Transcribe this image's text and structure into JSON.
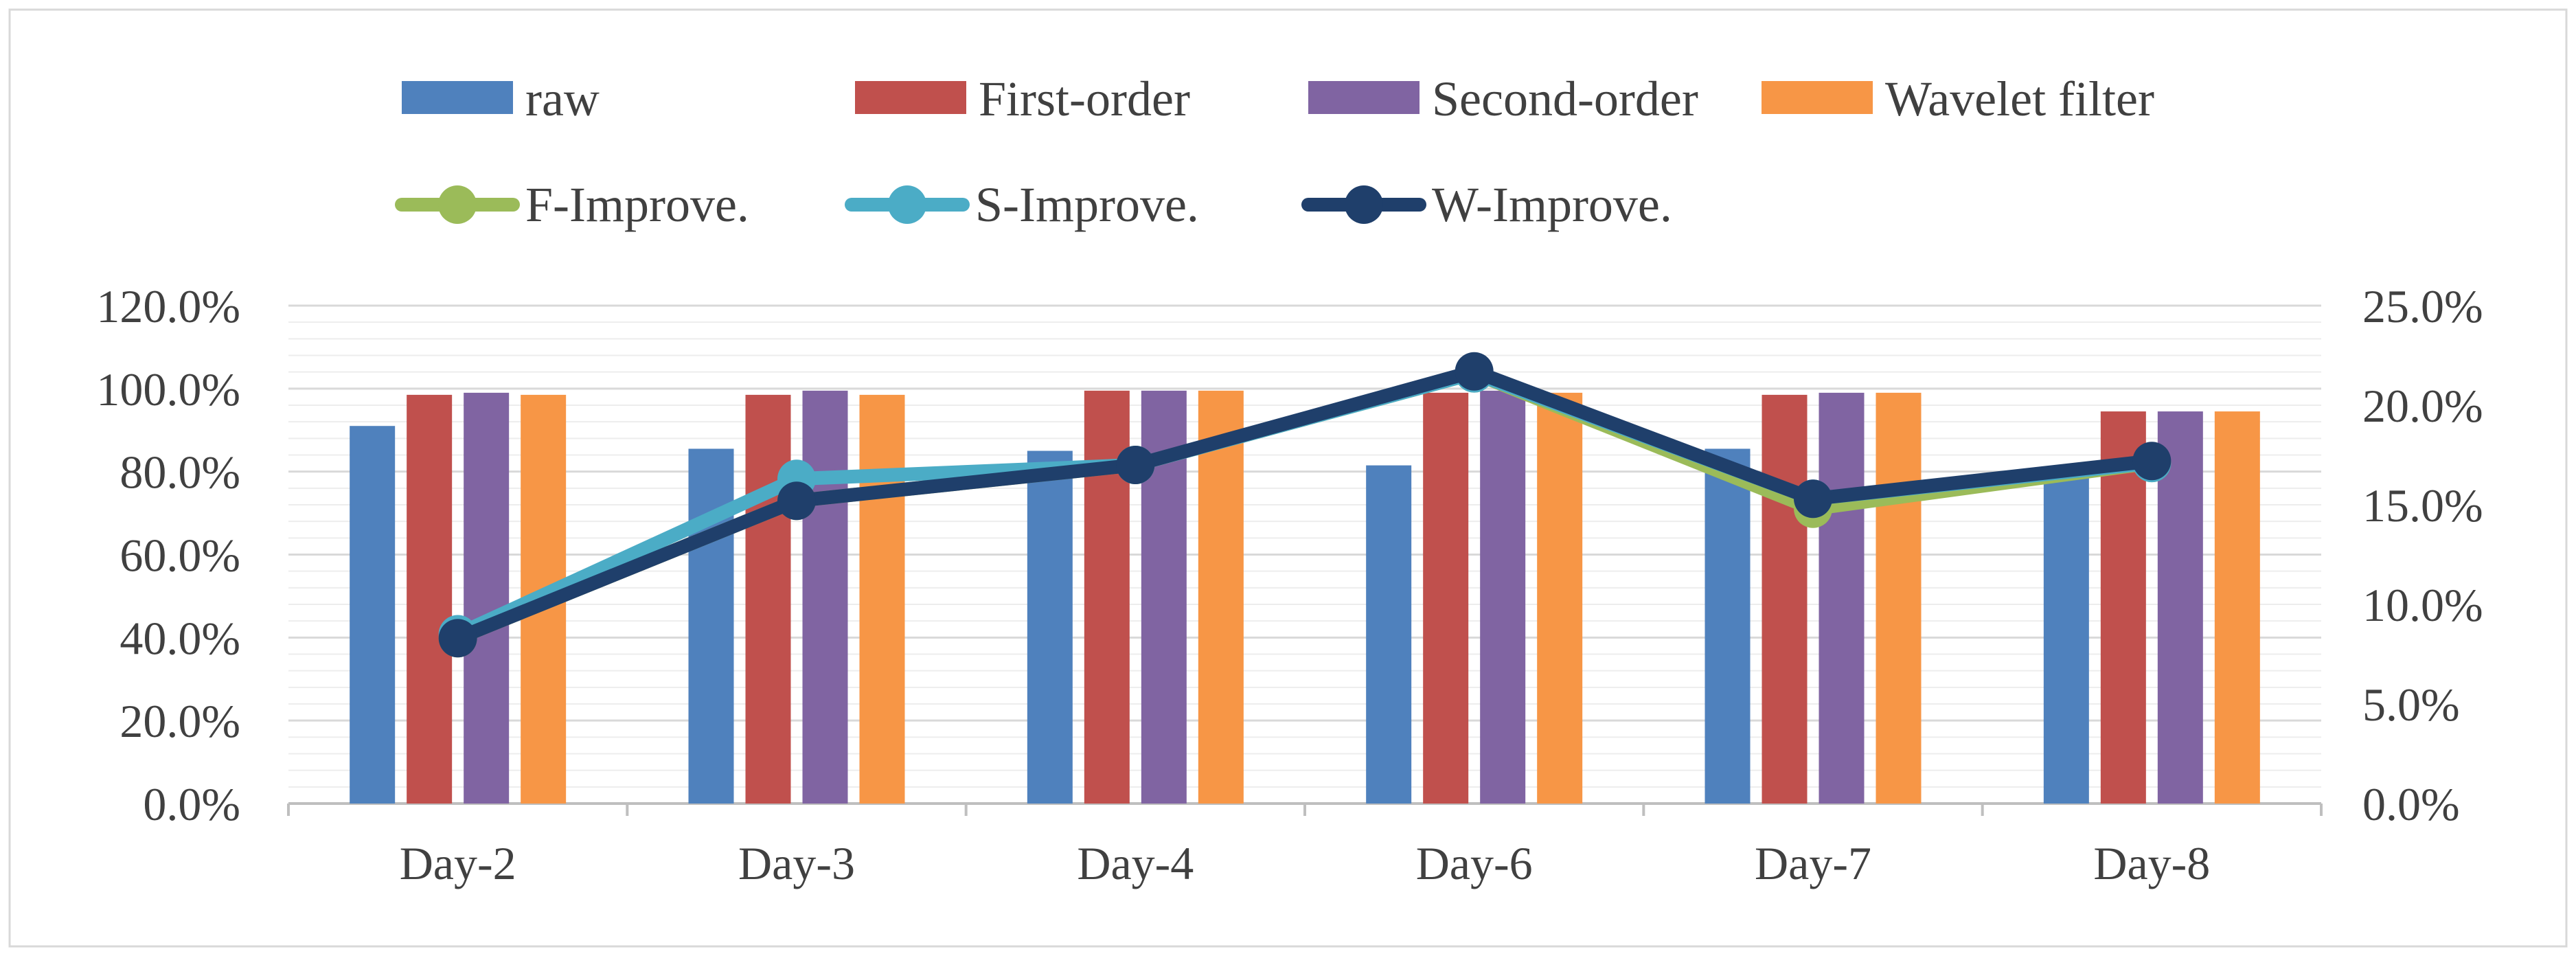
{
  "chart_data": {
    "type": "bar",
    "title": "",
    "xlabel": "",
    "ylabel": "",
    "categories": [
      "Day-2",
      "Day-3",
      "Day-4",
      "Day-6",
      "Day-7",
      "Day-8"
    ],
    "series": [
      {
        "name": "raw",
        "axis": "left",
        "kind": "bar",
        "color": "#4f81bd",
        "values": [
          91.0,
          85.5,
          85.0,
          81.5,
          85.5,
          81.0
        ]
      },
      {
        "name": "First-order",
        "axis": "left",
        "kind": "bar",
        "color": "#c0504d",
        "values": [
          98.5,
          98.5,
          99.5,
          99.0,
          98.5,
          94.5
        ]
      },
      {
        "name": "Second-order",
        "axis": "left",
        "kind": "bar",
        "color": "#8064a2",
        "values": [
          99.0,
          99.5,
          99.5,
          99.5,
          99.0,
          94.5
        ]
      },
      {
        "name": "Wavelet filter",
        "axis": "left",
        "kind": "bar",
        "color": "#f79646",
        "values": [
          98.5,
          98.5,
          99.5,
          99.0,
          99.0,
          94.5
        ]
      },
      {
        "name": "F-Improve.",
        "axis": "right",
        "kind": "line",
        "color": "#9bbb59",
        "values": [
          8.3,
          15.2,
          17.0,
          21.6,
          14.8,
          17.1
        ]
      },
      {
        "name": "S-Improve.",
        "axis": "right",
        "kind": "line",
        "color": "#4bacc6",
        "values": [
          8.5,
          16.3,
          17.0,
          21.6,
          15.3,
          17.1
        ]
      },
      {
        "name": "W-Improve.",
        "axis": "right",
        "kind": "line",
        "color": "#1f3f6b",
        "values": [
          8.3,
          15.2,
          17.0,
          21.7,
          15.3,
          17.2
        ]
      }
    ],
    "y_left": {
      "ylim": [
        0,
        120
      ],
      "ticks": [
        0,
        20,
        40,
        60,
        80,
        100,
        120
      ],
      "tick_labels": [
        "0.0%",
        "20.0%",
        "40.0%",
        "60.0%",
        "80.0%",
        "100.0%",
        "120.0%"
      ]
    },
    "y_right": {
      "ylim": [
        0,
        25
      ],
      "ticks": [
        0,
        5,
        10,
        15,
        20,
        25
      ],
      "tick_labels": [
        "0.0%",
        "5.0%",
        "10.0%",
        "15.0%",
        "20.0%",
        "25.0%"
      ]
    },
    "grid": true,
    "legend_position": "top"
  }
}
